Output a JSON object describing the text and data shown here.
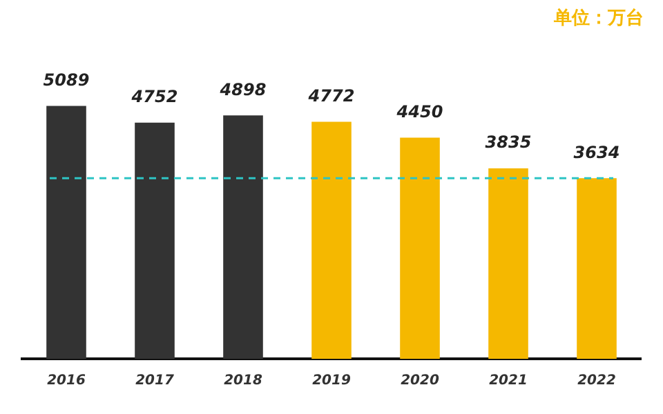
{
  "chart_data": {
    "type": "bar",
    "categories": [
      "2016",
      "2017",
      "2018",
      "2019",
      "2020",
      "2021",
      "2022"
    ],
    "values": [
      5089,
      4752,
      4898,
      4772,
      4450,
      3835,
      3634
    ],
    "colors": [
      "#333333",
      "#333333",
      "#333333",
      "#f5b800",
      "#f5b800",
      "#f5b800",
      "#f5b800"
    ],
    "data_labels": true,
    "tick_labels": "x",
    "grid": false,
    "legend": false,
    "ref_lines": [
      {
        "axis": "y",
        "value": 3634,
        "color": "#2ec4c4",
        "line_style": "dashed"
      }
    ],
    "annotations": [
      "单位：万台"
    ]
  }
}
